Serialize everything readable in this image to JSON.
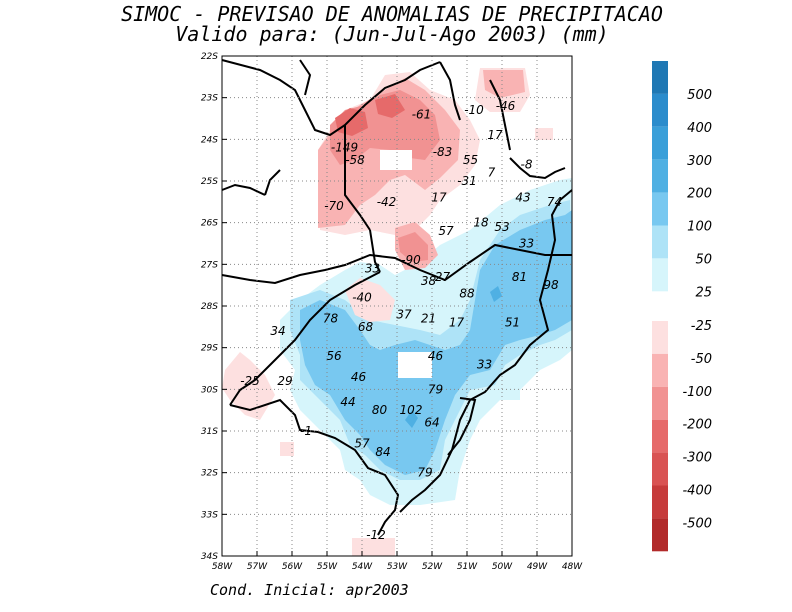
{
  "header": {
    "title_line1": "SIMOC - PREVISAO DE ANOMALIAS DE PRECIPITACAO",
    "title_line2": "Valido para: (Jun-Jul-Ago 2003) (mm)"
  },
  "footer": {
    "initial_condition": "Cond. Inicial: apr2003"
  },
  "map": {
    "lat_ticks": [
      "22S",
      "23S",
      "24S",
      "25S",
      "26S",
      "27S",
      "28S",
      "29S",
      "30S",
      "31S",
      "32S",
      "33S",
      "34S"
    ],
    "lon_ticks": [
      "58W",
      "57W",
      "56W",
      "55W",
      "54W",
      "53W",
      "52W",
      "51W",
      "50W",
      "49W",
      "48W"
    ],
    "lat_range": [
      -34,
      -22
    ],
    "lon_range": [
      -58,
      -48
    ],
    "grid": true,
    "values": [
      {
        "text": "-61",
        "lon": -52.3,
        "lat": -23.4
      },
      {
        "text": "-10",
        "lon": -50.8,
        "lat": -23.3
      },
      {
        "text": "-46",
        "lon": -49.9,
        "lat": -23.2
      },
      {
        "text": "17",
        "lon": -50.2,
        "lat": -23.9
      },
      {
        "text": "-149",
        "lon": -54.5,
        "lat": -24.2
      },
      {
        "text": "-83",
        "lon": -51.7,
        "lat": -24.3
      },
      {
        "text": "-58",
        "lon": -54.2,
        "lat": -24.5
      },
      {
        "text": "55",
        "lon": -50.9,
        "lat": -24.5
      },
      {
        "text": "-8",
        "lon": -49.3,
        "lat": -24.6
      },
      {
        "text": "7",
        "lon": -50.3,
        "lat": -24.8
      },
      {
        "text": "-31",
        "lon": -51.0,
        "lat": -25.0
      },
      {
        "text": "17",
        "lon": -51.8,
        "lat": -25.4
      },
      {
        "text": "43",
        "lon": -49.4,
        "lat": -25.4
      },
      {
        "text": "74",
        "lon": -48.5,
        "lat": -25.5
      },
      {
        "text": "-70",
        "lon": -54.8,
        "lat": -25.6
      },
      {
        "text": "-42",
        "lon": -53.3,
        "lat": -25.5
      },
      {
        "text": "18",
        "lon": -50.6,
        "lat": -26.0
      },
      {
        "text": "57",
        "lon": -51.6,
        "lat": -26.2
      },
      {
        "text": "53",
        "lon": -50.0,
        "lat": -26.1
      },
      {
        "text": "33",
        "lon": -49.3,
        "lat": -26.5
      },
      {
        "text": "-90",
        "lon": -52.6,
        "lat": -26.9
      },
      {
        "text": "33",
        "lon": -53.7,
        "lat": -27.1
      },
      {
        "text": "38",
        "lon": -52.1,
        "lat": -27.4
      },
      {
        "text": "27",
        "lon": -51.7,
        "lat": -27.3
      },
      {
        "text": "81",
        "lon": -49.5,
        "lat": -27.3
      },
      {
        "text": "98",
        "lon": -48.6,
        "lat": -27.5
      },
      {
        "text": "88",
        "lon": -51.0,
        "lat": -27.7
      },
      {
        "text": "-40",
        "lon": -54.0,
        "lat": -27.8
      },
      {
        "text": "78",
        "lon": -54.9,
        "lat": -28.3
      },
      {
        "text": "37",
        "lon": -52.8,
        "lat": -28.2
      },
      {
        "text": "21",
        "lon": -52.1,
        "lat": -28.3
      },
      {
        "text": "17",
        "lon": -51.3,
        "lat": -28.4
      },
      {
        "text": "51",
        "lon": -49.7,
        "lat": -28.4
      },
      {
        "text": "34",
        "lon": -56.4,
        "lat": -28.6
      },
      {
        "text": "68",
        "lon": -53.9,
        "lat": -28.5
      },
      {
        "text": "56",
        "lon": -54.8,
        "lat": -29.2
      },
      {
        "text": "46",
        "lon": -51.9,
        "lat": -29.2
      },
      {
        "text": "33",
        "lon": -50.5,
        "lat": -29.4
      },
      {
        "text": "46",
        "lon": -54.1,
        "lat": -29.7
      },
      {
        "text": "-25",
        "lon": -57.2,
        "lat": -29.8
      },
      {
        "text": "29",
        "lon": -56.2,
        "lat": -29.8
      },
      {
        "text": "79",
        "lon": -51.9,
        "lat": -30.0
      },
      {
        "text": "44",
        "lon": -54.4,
        "lat": -30.3
      },
      {
        "text": "80",
        "lon": -53.5,
        "lat": -30.5
      },
      {
        "text": "102",
        "lon": -52.6,
        "lat": -30.5
      },
      {
        "text": "64",
        "lon": -52.0,
        "lat": -30.8
      },
      {
        "text": "-1",
        "lon": -55.6,
        "lat": -31.0
      },
      {
        "text": "57",
        "lon": -54.0,
        "lat": -31.3
      },
      {
        "text": "84",
        "lon": -53.4,
        "lat": -31.5
      },
      {
        "text": "79",
        "lon": -52.2,
        "lat": -32.0
      },
      {
        "text": "-12",
        "lon": -53.6,
        "lat": -33.5
      }
    ]
  },
  "legend": {
    "positive": [
      {
        "label": "500",
        "color": "#1f78b4"
      },
      {
        "label": "400",
        "color": "#2b8ccc"
      },
      {
        "label": "300",
        "color": "#3a9fd9"
      },
      {
        "label": "200",
        "color": "#4fb0e3"
      },
      {
        "label": "100",
        "color": "#78c8f0"
      },
      {
        "label": "50",
        "color": "#aee3f7"
      },
      {
        "label": "25",
        "color": "#d6f5fb"
      }
    ],
    "negative": [
      {
        "label": "-25",
        "color": "#fde0e0"
      },
      {
        "label": "-50",
        "color": "#f9b3b3"
      },
      {
        "label": "-100",
        "color": "#f19292"
      },
      {
        "label": "-200",
        "color": "#e66a6a"
      },
      {
        "label": "-300",
        "color": "#d95353"
      },
      {
        "label": "-400",
        "color": "#c63b3b"
      },
      {
        "label": "-500",
        "color": "#b22a2a"
      }
    ]
  }
}
